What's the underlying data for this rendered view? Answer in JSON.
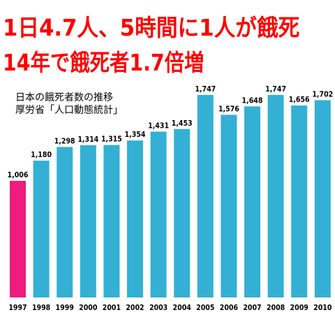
{
  "headline": {
    "line1": "1日4.7人、5時間に1人が餓死",
    "line2": "14年で餓死者1.7倍増"
  },
  "caption": {
    "line1": "日本の餓死者数の推移",
    "line2": "厚労省「人口動態統計」"
  },
  "chart_data": {
    "type": "bar",
    "title": "日本の餓死者数の推移",
    "subtitle": "厚労省「人口動態統計」",
    "categories": [
      "1997",
      "1998",
      "1999",
      "2000",
      "2001",
      "2002",
      "2003",
      "2004",
      "2005",
      "2006",
      "2007",
      "2008",
      "2009",
      "2010"
    ],
    "values": [
      1006,
      1180,
      1298,
      1314,
      1315,
      1354,
      1431,
      1453,
      1747,
      1576,
      1648,
      1747,
      1656,
      1702
    ],
    "value_labels": [
      "1,006",
      "1,180",
      "1,298",
      "1,314",
      "1,315",
      "1,354",
      "1,431",
      "1,453",
      "1,747",
      "1,576",
      "1,648",
      "1,747",
      "1,656",
      "1,702"
    ],
    "ylim": [
      0,
      1747
    ],
    "grid": false,
    "legend": "none",
    "colors": {
      "default": "#33b0d4",
      "highlight": "#ee1c7d"
    },
    "highlight_category": "1997"
  }
}
